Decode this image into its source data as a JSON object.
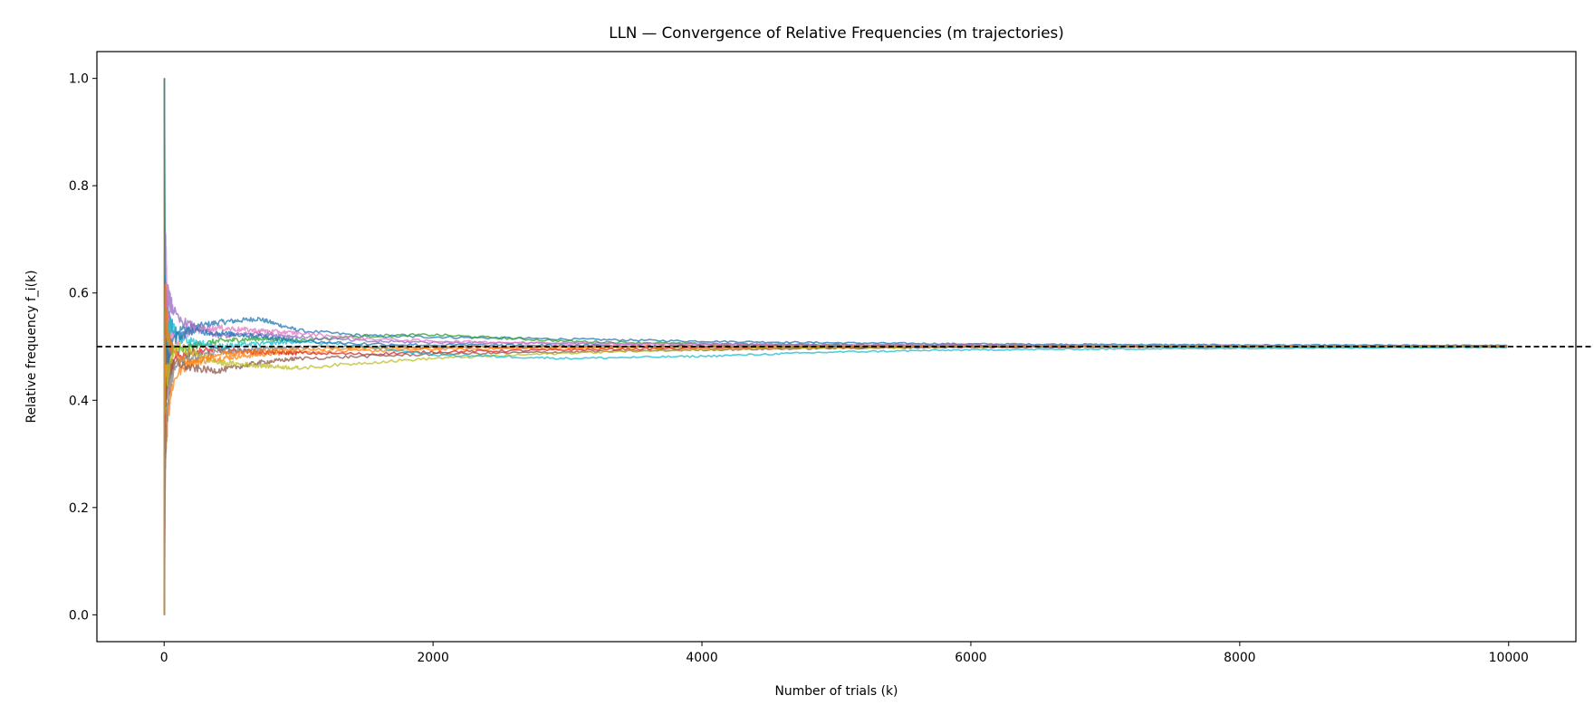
{
  "chart_data": {
    "type": "line",
    "title": "LLN — Convergence of Relative Frequencies (m trajectories)",
    "xlabel": "Number of trials (k)",
    "ylabel": "Relative frequency f_i(k)",
    "xlim": [
      -500,
      10500
    ],
    "ylim": [
      -0.05,
      1.05
    ],
    "x_ticks": [
      0,
      2000,
      4000,
      6000,
      8000,
      10000
    ],
    "y_ticks": [
      0.0,
      0.2,
      0.4,
      0.6,
      0.8,
      1.0
    ],
    "x_tick_labels": [
      "0",
      "2000",
      "4000",
      "6000",
      "8000",
      "10000"
    ],
    "y_tick_labels": [
      "0.0",
      "0.2",
      "0.4",
      "0.6",
      "0.8",
      "1.0"
    ],
    "reference_line": {
      "y": 0.5,
      "color": "#000000",
      "style": "dashed"
    },
    "grid": false,
    "legend": "none",
    "n_trials": 10000,
    "series_colors": [
      "#1f77b4",
      "#ff7f0e",
      "#2ca02c",
      "#d62728",
      "#9467bd",
      "#8c564b",
      "#e377c2",
      "#7f7f7f",
      "#bcbd22",
      "#17becf"
    ],
    "series": [
      {
        "x": [
          1,
          2,
          5,
          10,
          25,
          50,
          100,
          200,
          400,
          700,
          1000,
          1500,
          2000,
          3000,
          4000,
          5000,
          6000,
          8000,
          10000
        ],
        "values": [
          1.0,
          0.5,
          0.6,
          0.6,
          0.56,
          0.54,
          0.53,
          0.535,
          0.545,
          0.552,
          0.53,
          0.52,
          0.518,
          0.514,
          0.51,
          0.507,
          0.505,
          0.503,
          0.502
        ]
      },
      {
        "x": [
          1,
          2,
          5,
          10,
          25,
          50,
          100,
          200,
          400,
          700,
          1000,
          1500,
          2000,
          3000,
          4000,
          5000,
          6000,
          8000,
          10000
        ],
        "values": [
          0.0,
          0.5,
          0.4,
          0.3,
          0.36,
          0.42,
          0.45,
          0.47,
          0.478,
          0.485,
          0.49,
          0.492,
          0.495,
          0.497,
          0.5,
          0.501,
          0.502,
          0.501,
          0.5
        ]
      },
      {
        "x": [
          1,
          2,
          5,
          10,
          25,
          50,
          100,
          200,
          400,
          700,
          1000,
          1500,
          2000,
          3000,
          4000,
          5000,
          6000,
          8000,
          10000
        ],
        "values": [
          1.0,
          1.0,
          0.8,
          0.6,
          0.52,
          0.5,
          0.49,
          0.5,
          0.51,
          0.515,
          0.512,
          0.52,
          0.522,
          0.51,
          0.505,
          0.503,
          0.501,
          0.5,
          0.499
        ]
      },
      {
        "x": [
          1,
          2,
          5,
          10,
          25,
          50,
          100,
          200,
          400,
          700,
          1000,
          1500,
          2000,
          3000,
          4000,
          5000,
          6000,
          8000,
          10000
        ],
        "values": [
          0.0,
          0.0,
          0.2,
          0.4,
          0.48,
          0.46,
          0.48,
          0.49,
          0.495,
          0.49,
          0.488,
          0.486,
          0.49,
          0.494,
          0.497,
          0.498,
          0.499,
          0.5,
          0.501
        ]
      },
      {
        "x": [
          1,
          2,
          5,
          10,
          25,
          50,
          100,
          200,
          400,
          700,
          1000,
          1500,
          2000,
          3000,
          4000,
          5000,
          6000,
          8000,
          10000
        ],
        "values": [
          1.0,
          0.5,
          0.4,
          0.5,
          0.6,
          0.58,
          0.55,
          0.54,
          0.52,
          0.525,
          0.518,
          0.51,
          0.508,
          0.506,
          0.505,
          0.504,
          0.503,
          0.502,
          0.501
        ]
      },
      {
        "x": [
          1,
          2,
          5,
          10,
          25,
          50,
          100,
          200,
          400,
          700,
          1000,
          1500,
          2000,
          3000,
          4000,
          5000,
          6000,
          8000,
          10000
        ],
        "values": [
          0.0,
          0.5,
          0.6,
          0.4,
          0.44,
          0.46,
          0.47,
          0.46,
          0.455,
          0.47,
          0.478,
          0.482,
          0.486,
          0.49,
          0.494,
          0.497,
          0.499,
          0.5,
          0.5
        ]
      },
      {
        "x": [
          1,
          2,
          5,
          10,
          25,
          50,
          100,
          200,
          400,
          700,
          1000,
          1500,
          2000,
          3000,
          4000,
          5000,
          6000,
          8000,
          10000
        ],
        "values": [
          1.0,
          0.5,
          0.6,
          0.7,
          0.56,
          0.52,
          0.51,
          0.53,
          0.535,
          0.53,
          0.525,
          0.515,
          0.51,
          0.506,
          0.504,
          0.502,
          0.501,
          0.5,
          0.499
        ]
      },
      {
        "x": [
          1,
          2,
          5,
          10,
          25,
          50,
          100,
          200,
          400,
          700,
          1000,
          1500,
          2000,
          3000,
          4000,
          5000,
          6000,
          8000,
          10000
        ],
        "values": [
          0.0,
          0.0,
          0.2,
          0.3,
          0.4,
          0.44,
          0.47,
          0.48,
          0.49,
          0.496,
          0.498,
          0.5,
          0.499,
          0.5,
          0.501,
          0.5,
          0.5,
          0.5,
          0.5
        ]
      },
      {
        "x": [
          1,
          2,
          5,
          10,
          25,
          50,
          100,
          200,
          400,
          700,
          1000,
          1500,
          2000,
          3000,
          4000,
          5000,
          6000,
          8000,
          10000
        ],
        "values": [
          1.0,
          0.5,
          0.4,
          0.5,
          0.44,
          0.48,
          0.5,
          0.49,
          0.47,
          0.465,
          0.46,
          0.47,
          0.478,
          0.488,
          0.495,
          0.498,
          0.5,
          0.501,
          0.5
        ]
      },
      {
        "x": [
          1,
          2,
          5,
          10,
          25,
          50,
          100,
          200,
          400,
          700,
          1000,
          1500,
          2000,
          3000,
          4000,
          5000,
          6000,
          8000,
          10000
        ],
        "values": [
          0.0,
          0.5,
          0.6,
          0.5,
          0.52,
          0.54,
          0.52,
          0.51,
          0.5,
          0.505,
          0.51,
          0.5,
          0.485,
          0.478,
          0.482,
          0.49,
          0.494,
          0.497,
          0.499
        ]
      },
      {
        "x": [
          1,
          2,
          5,
          10,
          25,
          50,
          100,
          200,
          400,
          700,
          1000,
          1500,
          2000,
          3000,
          4000,
          5000,
          6000,
          8000,
          10000
        ],
        "values": [
          1.0,
          1.0,
          0.6,
          0.5,
          0.48,
          0.5,
          0.52,
          0.53,
          0.525,
          0.52,
          0.51,
          0.505,
          0.503,
          0.502,
          0.501,
          0.5,
          0.5,
          0.5,
          0.5
        ]
      },
      {
        "x": [
          1,
          2,
          5,
          10,
          25,
          50,
          100,
          200,
          400,
          700,
          1000,
          1500,
          2000,
          3000,
          4000,
          5000,
          6000,
          8000,
          10000
        ],
        "values": [
          0.0,
          0.5,
          0.4,
          0.6,
          0.52,
          0.5,
          0.48,
          0.47,
          0.485,
          0.49,
          0.495,
          0.497,
          0.498,
          0.499,
          0.5,
          0.5,
          0.501,
          0.5,
          0.5
        ]
      }
    ]
  }
}
